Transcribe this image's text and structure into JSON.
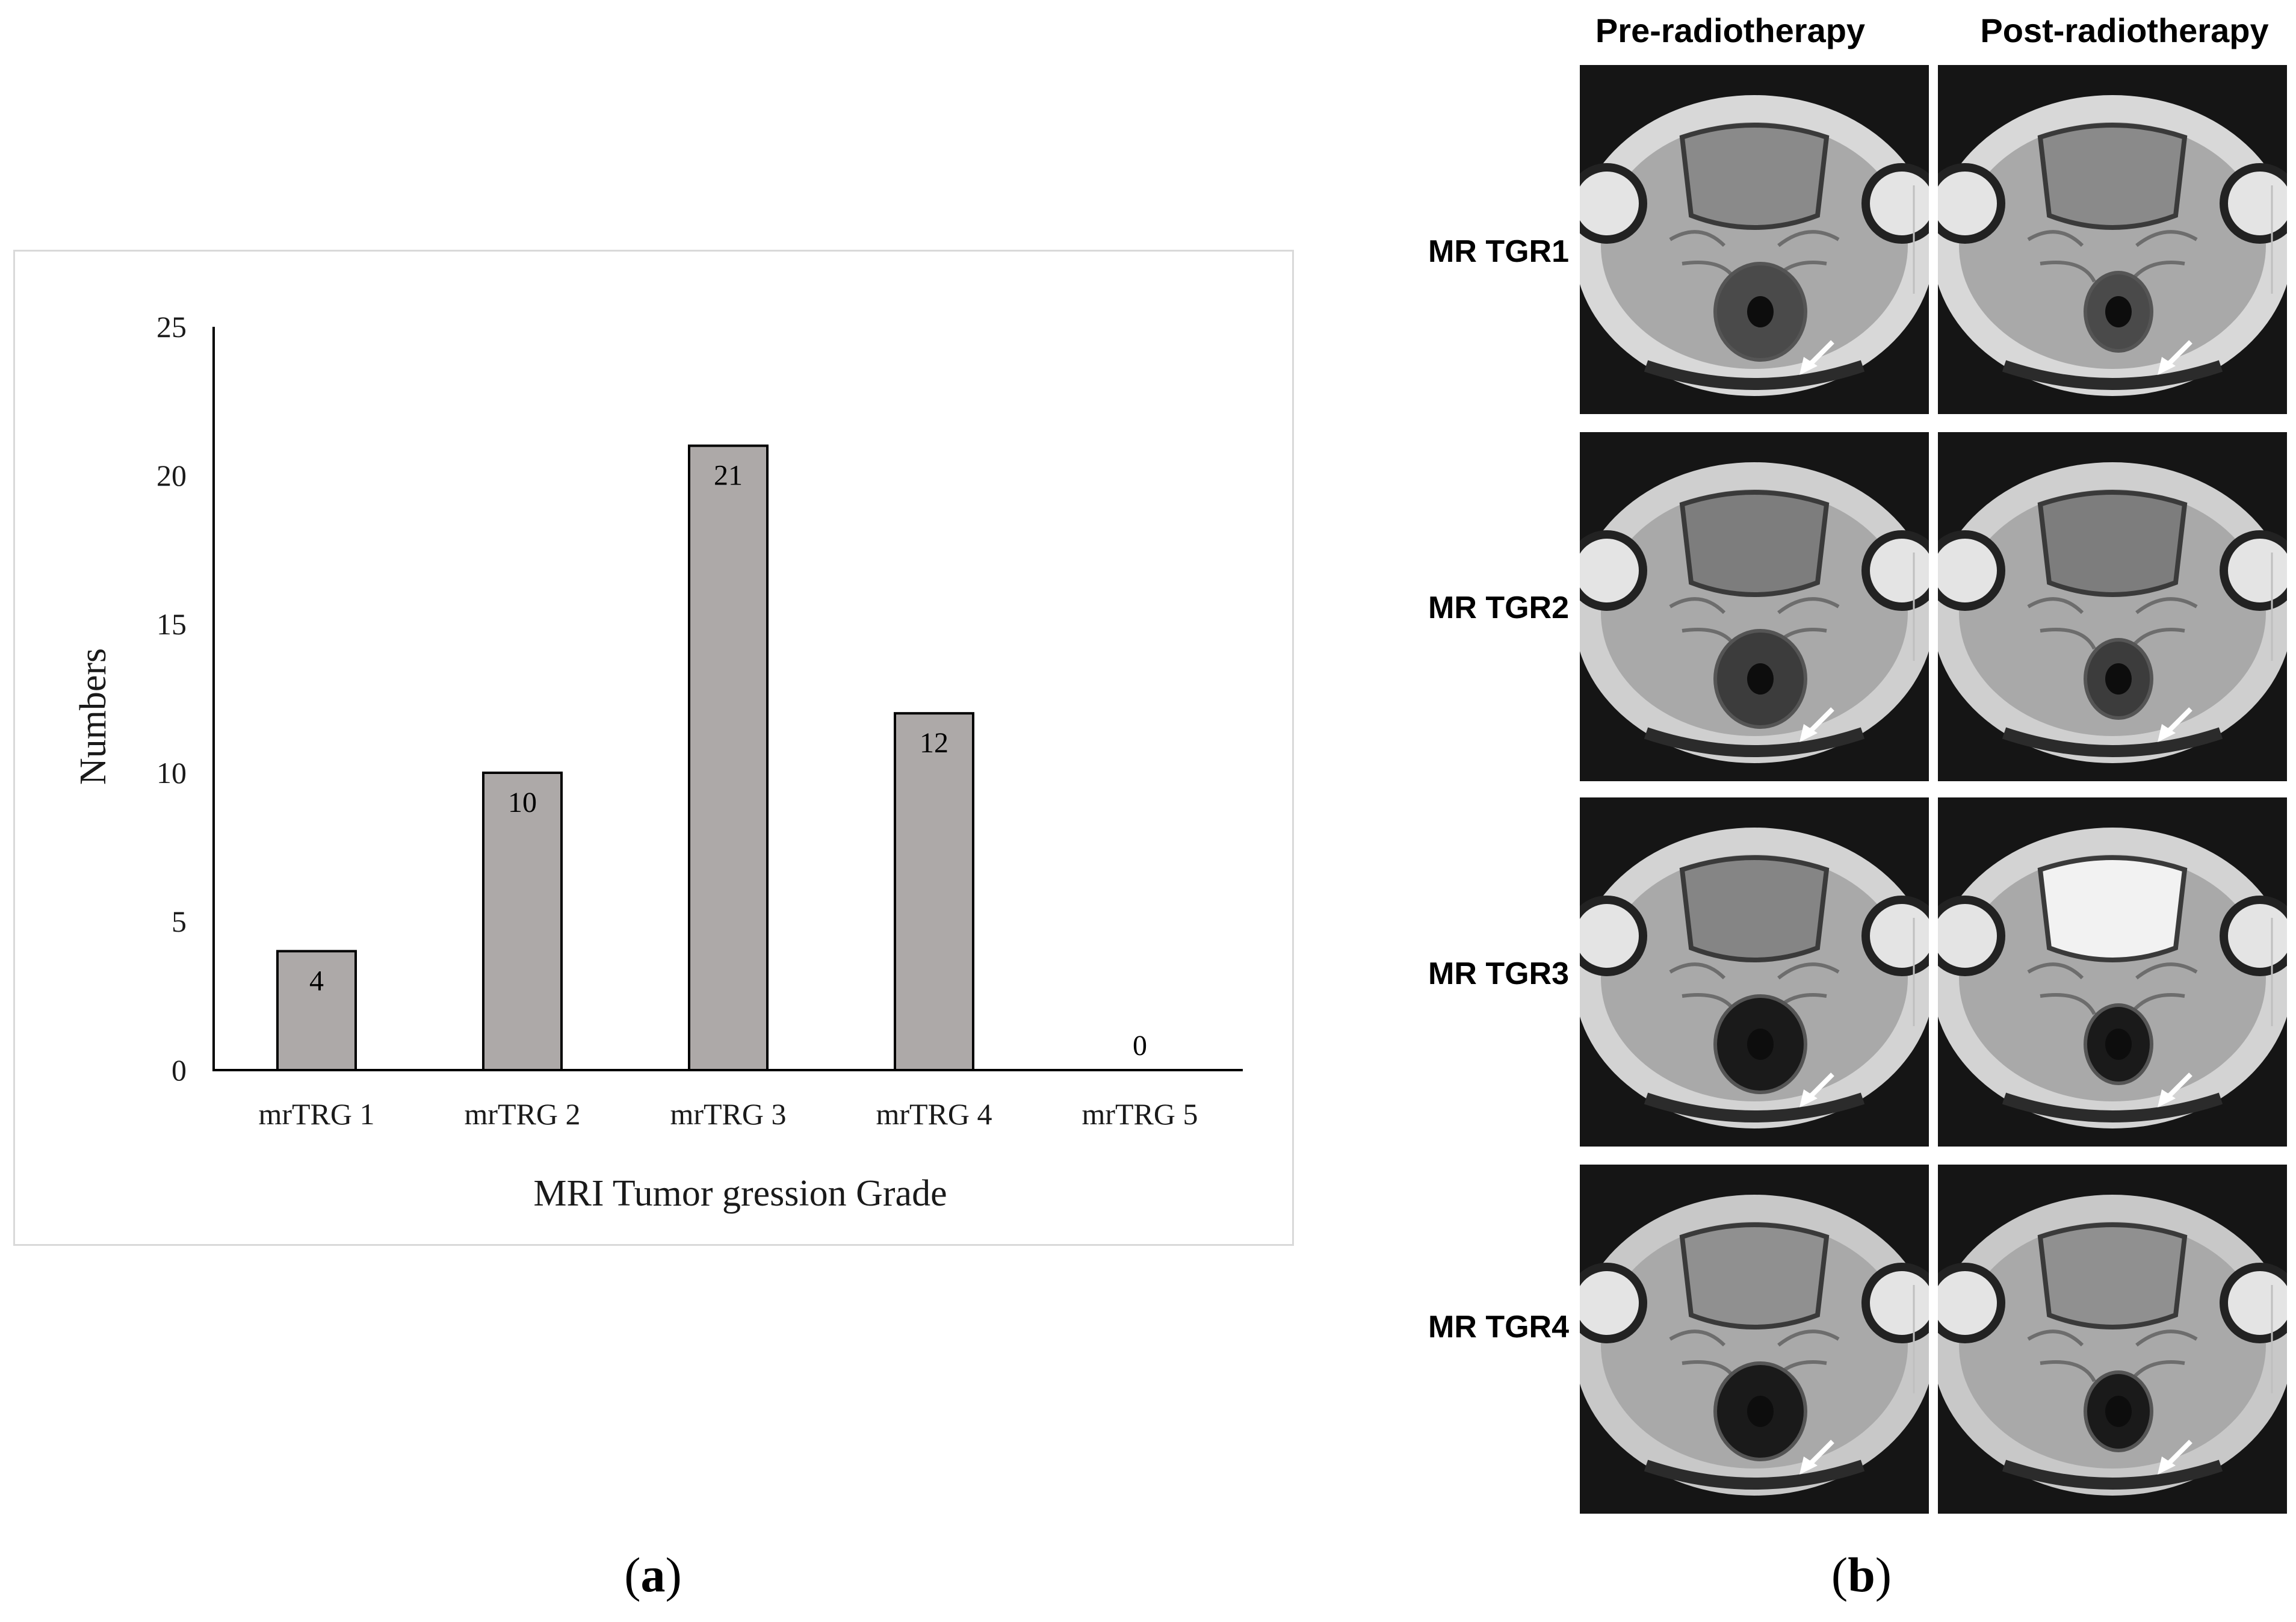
{
  "chart_data": {
    "type": "bar",
    "categories": [
      "mrTRG 1",
      "mrTRG 2",
      "mrTRG 3",
      "mrTRG 4",
      "mrTRG 5"
    ],
    "values": [
      4,
      10,
      21,
      12,
      0
    ],
    "data_labels": [
      "4",
      "10",
      "21",
      "12",
      "0"
    ],
    "xlabel": "MRI Tumor gression Grade",
    "ylabel": "Numbers",
    "ylim": [
      0,
      25
    ],
    "yticks": [
      0,
      5,
      10,
      15,
      20,
      25
    ],
    "grid": false,
    "bar_color": "#ada9a8",
    "bar_edge_color": "#000000"
  },
  "panel_labels": {
    "a": "a",
    "b": "b"
  },
  "mri_grid": {
    "columns": [
      "Pre-radiotherapy",
      "Post-radiotherapy"
    ],
    "rows": [
      "MR TGR1",
      "MR TGR2",
      "MR TGR3",
      "MR TGR4"
    ]
  }
}
